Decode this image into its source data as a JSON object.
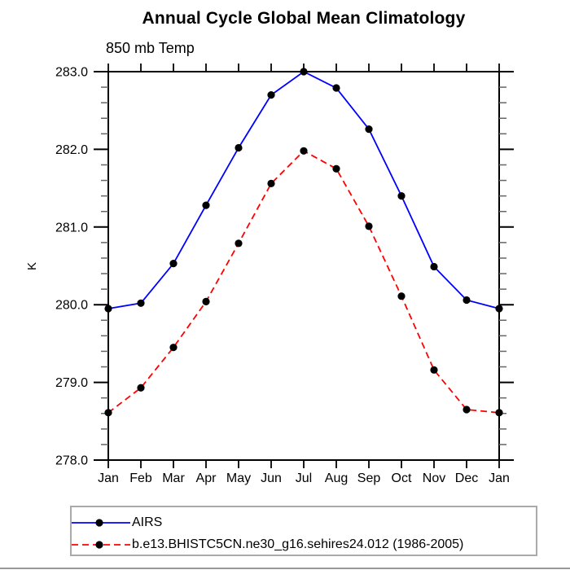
{
  "title": "Annual Cycle Global Mean Climatology",
  "subtitle": "850 mb Temp",
  "chart_data": {
    "type": "line",
    "x_categories": [
      "Jan",
      "Feb",
      "Mar",
      "Apr",
      "May",
      "Jun",
      "Jul",
      "Aug",
      "Sep",
      "Oct",
      "Nov",
      "Dec",
      "Jan"
    ],
    "series": [
      {
        "name": "AIRS",
        "color": "#0000ff",
        "line_style": "solid",
        "marker": "filled-circle",
        "marker_color": "#000000",
        "values": [
          279.95,
          280.02,
          280.53,
          281.28,
          282.02,
          282.7,
          283.0,
          282.79,
          282.26,
          281.4,
          280.49,
          280.06,
          279.95
        ]
      },
      {
        "name": "b.e13.BHISTC5CN.ne30_g16.sehires24.012 (1986-2005)",
        "color": "#ff0000",
        "line_style": "dashed",
        "marker": "filled-circle",
        "marker_color": "#000000",
        "values": [
          278.61,
          278.93,
          279.45,
          280.04,
          280.79,
          281.56,
          281.98,
          281.75,
          281.01,
          280.11,
          279.16,
          278.65,
          278.61
        ]
      }
    ],
    "xlabel": "",
    "ylabel": "K",
    "ylim": [
      278.0,
      283.0
    ],
    "y_major_step": 1.0,
    "y_minor_step": 0.2,
    "y_tick_labels": [
      "278.0",
      "279.0",
      "280.0",
      "281.0",
      "282.0",
      "283.0"
    ],
    "grid": false,
    "legend_position": "bottom-left-box",
    "axis_color": "#000000",
    "minor_tick_color": "#666666"
  }
}
